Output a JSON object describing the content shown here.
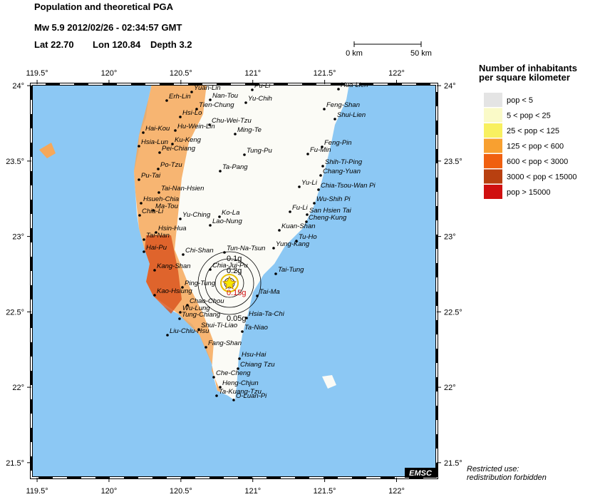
{
  "header": {
    "title": "Population and theoretical PGA",
    "event": "Mw 5.9  2012/02/26 - 02:34:57 GMT",
    "lat": "Lat 22.70",
    "lon": "Lon 120.84",
    "depth": "Depth  3.2"
  },
  "scale": {
    "start": "0 km",
    "end": "50 km"
  },
  "map": {
    "xlim": [
      119.46,
      122.28
    ],
    "ylim": [
      21.4,
      24.01
    ],
    "xticks": [
      {
        "value": 119.5,
        "label": "119.5°"
      },
      {
        "value": 120,
        "label": "120°"
      },
      {
        "value": 120.5,
        "label": "120.5°"
      },
      {
        "value": 121,
        "label": "121°"
      },
      {
        "value": 121.5,
        "label": "121.5°"
      },
      {
        "value": 122,
        "label": "122°"
      }
    ],
    "yticks": [
      {
        "value": 21.5,
        "label": "21.5°"
      },
      {
        "value": 22,
        "label": "22°"
      },
      {
        "value": 22.5,
        "label": "22.5°"
      },
      {
        "value": 23,
        "label": "23°"
      },
      {
        "value": 23.5,
        "label": "23.5°"
      },
      {
        "value": 24,
        "label": "24°"
      }
    ],
    "pga_labels": [
      "0.1g",
      "0.2g",
      "0.15g",
      "0.05g"
    ],
    "towns": [
      "Yuan-Lin",
      "Pu-Li",
      "Erh-Lin",
      "Nan-Tou",
      "Yu-Chih",
      "Tien-Chung",
      "Hsi-Lo",
      "Chu-Wei-Tzu",
      "Hai-Kou",
      "Hu-Wein-Lin",
      "Ming-Te",
      "Ku-Keng",
      "Hsia-Lun",
      "Pei-Chiang",
      "Tung-Pu",
      "Po-Tzu",
      "Ta-Pang",
      "Pu-Tai",
      "Tai-Nan-Hsien",
      "Hsueh-Chia",
      "Ma-Tou",
      "Chia-Li",
      "Ko-La",
      "Yu-Ching",
      "Lao-Nung",
      "Hsin-Hua",
      "Tai-Nan",
      "Hai-Pu",
      "Chi-Shan",
      "Tun-Na-Tsun",
      "Kang-Shan",
      "Chia-Jui-Pu",
      "Ping-Tung",
      "Kao-Hsiung",
      "Chao-Chou",
      "Wu-Lung",
      "Tung-Chiang",
      "Shui-Ti-Liao",
      "Liu-Chiu-Hsu",
      "Fang-Shan",
      "Hsu-Hai",
      "Chiang Tzu",
      "Che-Cheng",
      "Heng-Chjun",
      "Ta-Kuang-Tzu",
      "O-Luan-Pi",
      "Hsia-Ta-Chi",
      "Ta-Niao",
      "Tai-Ma",
      "Tai-Tung",
      "Yung-Kang",
      "Tu-Ho",
      "Kuan-Shan",
      "Cheng-Kung",
      "San Hsien Tai",
      "Fu-Li",
      "Wu-Shih Pi",
      "Chia-Tsou-Wan Pi",
      "Yu-Li",
      "Chang-Yuan",
      "Shih-Ti-Ping",
      "Fu-Min",
      "Feng-Pin",
      "Shui-Lien",
      "Feng-Shan",
      "Hua-Lien"
    ]
  },
  "legend": {
    "title_line1": "Number of inhabitants",
    "title_line2": "per square kilometer",
    "items": [
      {
        "label": "pop < 5",
        "color": "#e4e4e4"
      },
      {
        "label": "5 < pop < 25",
        "color": "#fafac8"
      },
      {
        "label": "25 < pop < 125",
        "color": "#f8f060"
      },
      {
        "label": "125 < pop < 600",
        "color": "#f8a030"
      },
      {
        "label": "600 < pop < 3000",
        "color": "#f06010"
      },
      {
        "label": "3000 < pop < 15000",
        "color": "#b84010"
      },
      {
        "label": "pop > 15000",
        "color": "#d01010"
      }
    ]
  },
  "footer": {
    "line1": "Restricted use:",
    "line2": "redistribution forbidden",
    "logo": "EMSC"
  }
}
